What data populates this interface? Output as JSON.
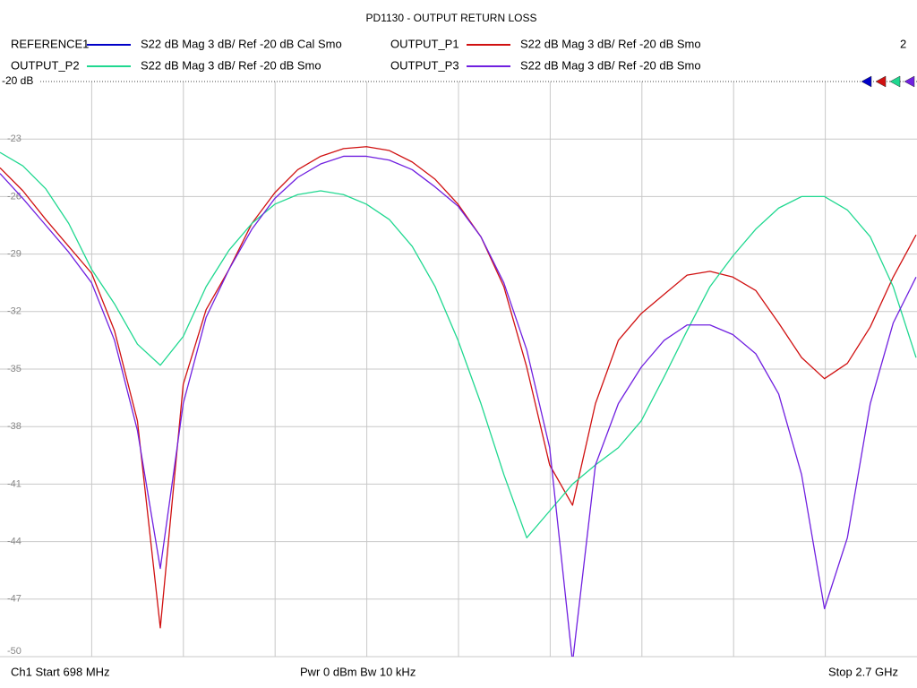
{
  "chart_data": {
    "type": "line",
    "title": "PD1130 - OUTPUT RETURN LOSS",
    "channel_number": "2",
    "ref_label": "-20 dB",
    "footer_left": "Ch1  Start  698 MHz",
    "footer_center": "Pwr  0 dBm  Bw  10 kHz",
    "footer_right": "Stop  2.7 GHz",
    "xlim": [
      698,
      2700
    ],
    "ylim": [
      -50,
      -20
    ],
    "yticks": [
      -20,
      -23,
      -26,
      -29,
      -32,
      -35,
      -38,
      -41,
      -44,
      -47,
      -50
    ],
    "grid": true,
    "x": [
      698,
      748,
      798,
      848,
      898,
      948,
      998,
      1048,
      1098,
      1148,
      1198,
      1248,
      1298,
      1348,
      1398,
      1448,
      1498,
      1548,
      1598,
      1648,
      1698,
      1748,
      1798,
      1848,
      1898,
      1948,
      1998,
      2048,
      2098,
      2148,
      2198,
      2248,
      2298,
      2348,
      2398,
      2448,
      2498,
      2548,
      2598,
      2648,
      2698
    ],
    "series": [
      {
        "name": "REFERENCE1",
        "trace_label": "S22  dB Mag  3 dB/ Ref -20 dB  Cal Smo",
        "color": "#0000c8",
        "values": [
          null,
          null,
          null,
          null,
          null,
          null,
          null,
          null,
          null,
          null,
          null,
          null,
          null,
          null,
          null,
          null,
          null,
          null,
          null,
          null,
          null,
          null,
          null,
          null,
          null,
          null,
          null,
          null,
          null,
          null,
          null,
          null,
          null,
          null,
          null,
          null,
          null,
          null,
          null,
          null,
          null
        ]
      },
      {
        "name": "OUTPUT_P1",
        "trace_label": "S22  dB Mag  3 dB/ Ref -20 dB  Smo",
        "color": "#d01010",
        "values": [
          -24.5,
          -25.7,
          -27.2,
          -28.6,
          -30.0,
          -33.0,
          -37.7,
          -48.5,
          -35.8,
          -31.9,
          -29.8,
          -27.4,
          -25.8,
          -24.6,
          -23.9,
          -23.5,
          -23.4,
          -23.6,
          -24.2,
          -25.1,
          -26.4,
          -28.1,
          -30.7,
          -34.9,
          -40.0,
          -42.1,
          -36.8,
          -33.5,
          -32.1,
          -31.1,
          -30.1,
          -29.9,
          -30.2,
          -30.9,
          -32.6,
          -34.4,
          -35.5,
          -34.7,
          -32.8,
          -30.2,
          -28.0
        ]
      },
      {
        "name": "OUTPUT_P2",
        "trace_label": "S22  dB Mag  3 dB/ Ref -20 dB  Smo",
        "color": "#20d890",
        "values": [
          -23.7,
          -24.4,
          -25.6,
          -27.4,
          -29.8,
          -31.6,
          -33.7,
          -34.8,
          -33.3,
          -30.7,
          -28.8,
          -27.4,
          -26.4,
          -25.9,
          -25.7,
          -25.9,
          -26.4,
          -27.2,
          -28.6,
          -30.7,
          -33.5,
          -36.8,
          -40.5,
          -43.8,
          -42.4,
          -41.0,
          -40.0,
          -39.1,
          -37.7,
          -35.4,
          -33.0,
          -30.7,
          -29.1,
          -27.7,
          -26.6,
          -26.0,
          -26.0,
          -26.7,
          -28.1,
          -30.7,
          -34.4
        ]
      },
      {
        "name": "OUTPUT_P3",
        "trace_label": "S22  dB Mag  3 dB/ Ref -20 dB  Smo",
        "color": "#7020e0",
        "values": [
          -24.8,
          -26.1,
          -27.5,
          -28.9,
          -30.5,
          -33.5,
          -38.2,
          -45.4,
          -36.8,
          -32.3,
          -29.8,
          -27.7,
          -26.1,
          -25.0,
          -24.3,
          -23.9,
          -23.9,
          -24.1,
          -24.6,
          -25.5,
          -26.5,
          -28.1,
          -30.5,
          -34.0,
          -39.1,
          -50.3,
          -40.0,
          -36.8,
          -34.9,
          -33.5,
          -32.7,
          -32.7,
          -33.2,
          -34.2,
          -36.3,
          -40.5,
          -47.5,
          -43.8,
          -36.8,
          -32.6,
          -30.2
        ]
      }
    ]
  }
}
